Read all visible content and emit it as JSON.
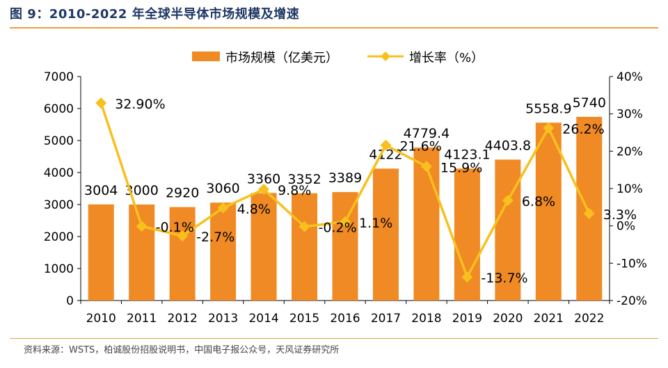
{
  "header": {
    "title": "图 9：2010-2022 年全球半导体市场规模及增速"
  },
  "footer": {
    "source": "资料来源：WSTS，柏诚股份招股说明书，中国电子报公众号，天风证券研究所"
  },
  "colors": {
    "bar": "#f08a24",
    "line": "#f8c01e",
    "accent_rule": "#f29c38",
    "title": "#1f3864"
  },
  "chart_data": {
    "type": "bar",
    "title": "2010-2022 年全球半导体市场规模及增速",
    "categories": [
      "2010",
      "2011",
      "2012",
      "2013",
      "2014",
      "2015",
      "2016",
      "2017",
      "2018",
      "2019",
      "2020",
      "2021",
      "2022"
    ],
    "series": [
      {
        "name": "市场规模（亿美元）",
        "type": "bar",
        "axis": "left",
        "values": [
          3004,
          3000,
          2920,
          3060,
          3360,
          3352,
          3389,
          4122,
          4779.4,
          4123.1,
          4403.8,
          5558.9,
          5740
        ],
        "labels": [
          "3004",
          "3000",
          "2920",
          "3060",
          "3360",
          "3352",
          "3389",
          "4122",
          "4779.4",
          "4123.1",
          "4403.8",
          "5558.9",
          "5740"
        ]
      },
      {
        "name": "增长率（%）",
        "type": "line",
        "axis": "right",
        "values": [
          32.9,
          -0.1,
          -2.7,
          4.8,
          9.8,
          -0.2,
          1.1,
          21.6,
          15.9,
          -13.7,
          6.8,
          26.2,
          3.3
        ],
        "labels": [
          "32.90%",
          "-0.1%",
          "-2.7%",
          "4.8%",
          "9.8%",
          "-0.2%",
          "1.1%",
          "21.6%",
          "15.9%",
          "-13.7%",
          "6.8%",
          "26.2%",
          "3.3%"
        ]
      }
    ],
    "y_left": {
      "range": [
        0,
        7000
      ],
      "ticks": [
        0,
        1000,
        2000,
        3000,
        4000,
        5000,
        6000,
        7000
      ],
      "tick_labels": [
        "0",
        "1000",
        "2000",
        "3000",
        "4000",
        "5000",
        "6000",
        "7000"
      ]
    },
    "y_right": {
      "range": [
        -20,
        40
      ],
      "ticks": [
        -20,
        -10,
        0,
        10,
        20,
        30,
        40
      ],
      "tick_labels": [
        "-20%",
        "-10%",
        "0%",
        "10%",
        "20%",
        "30%",
        "40%"
      ]
    },
    "legend": [
      "市场规模（亿美元）",
      "增长率（%）"
    ],
    "legend_position": "top-center",
    "grid": false
  }
}
